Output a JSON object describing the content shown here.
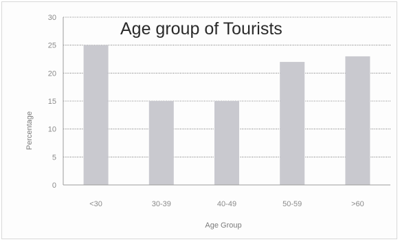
{
  "chart_data": {
    "type": "bar",
    "title": "Age group of Tourists",
    "xlabel": "Age Group",
    "ylabel": "Percentage",
    "categories": [
      "<30",
      "30-39",
      "40-49",
      "50-59",
      ">60"
    ],
    "values": [
      25,
      15,
      15,
      22,
      23
    ],
    "ylim": [
      0,
      30
    ],
    "yticks": [
      "0",
      "5",
      "10",
      "15",
      "20",
      "25",
      "30"
    ],
    "grid": true,
    "legend": "none",
    "bar_color": "#c9c9cf",
    "grid_color": "#555555"
  }
}
